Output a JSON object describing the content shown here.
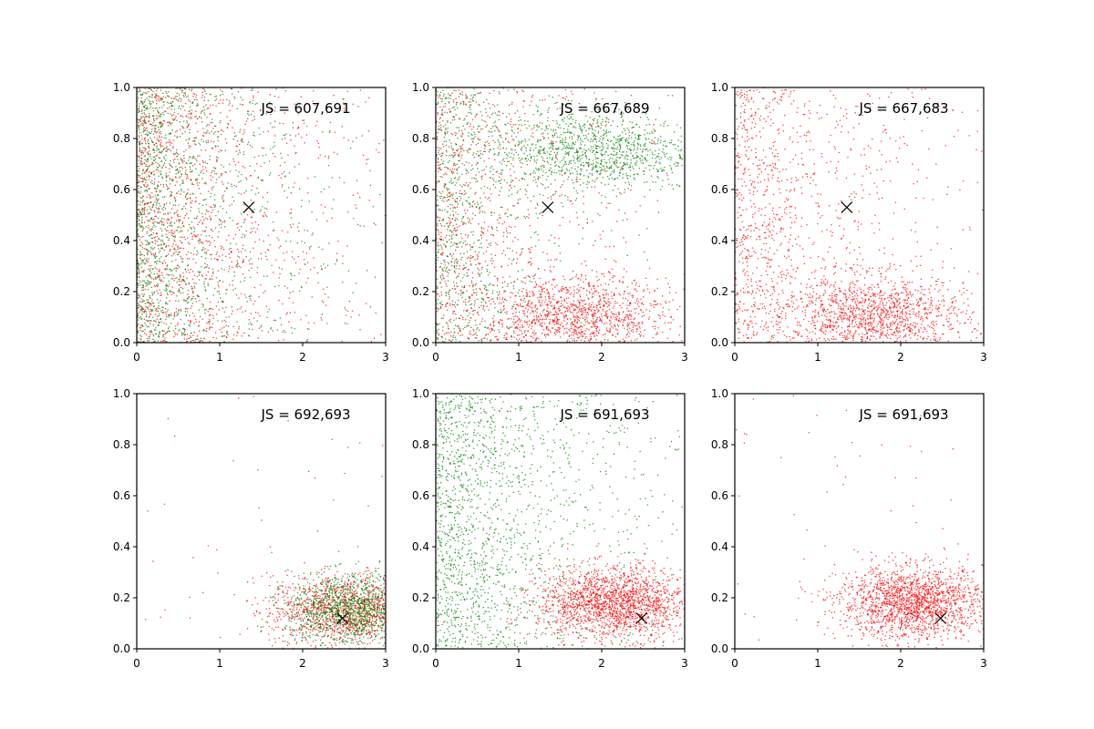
{
  "colors": {
    "red": "#ff0000",
    "green": "#008000",
    "marker": "#000000",
    "axes": "#000000"
  },
  "chart_data": [
    {
      "type": "scatter",
      "annotation": "JS = 607,691",
      "marker_x": [
        1.35,
        0.53
      ],
      "xlim": [
        0,
        3
      ],
      "ylim": [
        0,
        1.0
      ],
      "grid": false,
      "xticks": [
        "0",
        "1",
        "2",
        "3"
      ],
      "yticks": [
        "0.0",
        "0.2",
        "0.4",
        "0.6",
        "0.8",
        "1.0"
      ],
      "series": [
        {
          "color": "red",
          "distribution": "exponential-x, uniform-y",
          "x_mean": 0.8,
          "y_range": [
            0,
            1.0
          ],
          "count": 1500
        },
        {
          "color": "green",
          "distribution": "exponential-x, uniform-y",
          "x_mean": 0.7,
          "y_range": [
            0,
            1.0
          ],
          "count": 1500
        }
      ]
    },
    {
      "type": "scatter",
      "annotation": "JS = 667,689",
      "marker_x": [
        1.35,
        0.53
      ],
      "xlim": [
        0,
        3
      ],
      "ylim": [
        0,
        1.0
      ],
      "grid": false,
      "xticks": [
        "0",
        "1",
        "2",
        "3"
      ],
      "yticks": [
        "0.0",
        "0.2",
        "0.4",
        "0.6",
        "0.8",
        "1.0"
      ],
      "series": [
        {
          "color": "green",
          "cluster_center": [
            1.9,
            0.75
          ],
          "spread": [
            0.6,
            0.08
          ],
          "count": 1100
        },
        {
          "color": "green",
          "distribution": "exponential-x, uniform-y",
          "x_mean": 0.6,
          "y_range": [
            0,
            1.0
          ],
          "count": 900
        },
        {
          "color": "red",
          "cluster_center": [
            1.7,
            0.1
          ],
          "spread": [
            0.55,
            0.08
          ],
          "count": 1200
        },
        {
          "color": "red",
          "distribution": "exponential-x, uniform-y",
          "x_mean": 0.9,
          "y_range": [
            0,
            1.0
          ],
          "count": 900
        }
      ]
    },
    {
      "type": "scatter",
      "annotation": "JS = 667,683",
      "marker_x": [
        1.35,
        0.53
      ],
      "xlim": [
        0,
        3
      ],
      "ylim": [
        0,
        1.0
      ],
      "grid": false,
      "xticks": [
        "0",
        "1",
        "2",
        "3"
      ],
      "yticks": [
        "0.0",
        "0.2",
        "0.4",
        "0.6",
        "0.8",
        "1.0"
      ],
      "series": [
        {
          "color": "red",
          "cluster_center": [
            1.7,
            0.1
          ],
          "spread": [
            0.55,
            0.08
          ],
          "count": 1300
        },
        {
          "color": "red",
          "distribution": "exponential-x, uniform-y",
          "x_mean": 0.9,
          "y_range": [
            0,
            1.0
          ],
          "count": 1100
        }
      ]
    },
    {
      "type": "scatter",
      "annotation": "JS = 692,693",
      "marker_x": [
        2.48,
        0.12
      ],
      "xlim": [
        0,
        3
      ],
      "ylim": [
        0,
        1.0
      ],
      "grid": false,
      "xticks": [
        "0",
        "1",
        "2",
        "3"
      ],
      "yticks": [
        "0.0",
        "0.2",
        "0.4",
        "0.6",
        "0.8",
        "1.0"
      ],
      "series": [
        {
          "color": "red",
          "cluster_center": [
            2.5,
            0.15
          ],
          "spread": [
            0.45,
            0.07
          ],
          "count": 1300
        },
        {
          "color": "green",
          "cluster_center": [
            2.6,
            0.15
          ],
          "spread": [
            0.4,
            0.07
          ],
          "count": 1300
        },
        {
          "color": "red",
          "distribution": "uniform",
          "x_range": [
            0,
            3
          ],
          "y_range": [
            0,
            1.0
          ],
          "count": 30
        },
        {
          "color": "green",
          "distribution": "uniform",
          "x_range": [
            0,
            3
          ],
          "y_range": [
            0,
            1.0
          ],
          "count": 15
        }
      ]
    },
    {
      "type": "scatter",
      "annotation": "JS = 691,693",
      "marker_x": [
        2.48,
        0.12
      ],
      "xlim": [
        0,
        3
      ],
      "ylim": [
        0,
        1.0
      ],
      "grid": false,
      "xticks": [
        "0",
        "1",
        "2",
        "3"
      ],
      "yticks": [
        "0.0",
        "0.2",
        "0.4",
        "0.6",
        "0.8",
        "1.0"
      ],
      "series": [
        {
          "color": "green",
          "distribution": "exponential-x, uniform-y",
          "x_mean": 1.0,
          "y_range": [
            0,
            1.0
          ],
          "count": 1800
        },
        {
          "color": "red",
          "cluster_center": [
            2.15,
            0.18
          ],
          "spread": [
            0.45,
            0.07
          ],
          "count": 1800
        }
      ]
    },
    {
      "type": "scatter",
      "annotation": "JS = 691,693",
      "marker_x": [
        2.48,
        0.12
      ],
      "xlim": [
        0,
        3
      ],
      "ylim": [
        0,
        1.0
      ],
      "grid": false,
      "xticks": [
        "0",
        "1",
        "2",
        "3"
      ],
      "yticks": [
        "0.0",
        "0.2",
        "0.4",
        "0.6",
        "0.8",
        "1.0"
      ],
      "series": [
        {
          "color": "red",
          "cluster_center": [
            2.15,
            0.18
          ],
          "spread": [
            0.45,
            0.07
          ],
          "count": 1800
        },
        {
          "color": "red",
          "distribution": "uniform",
          "x_range": [
            0,
            3
          ],
          "y_range": [
            0,
            1.0
          ],
          "count": 60
        }
      ]
    }
  ]
}
